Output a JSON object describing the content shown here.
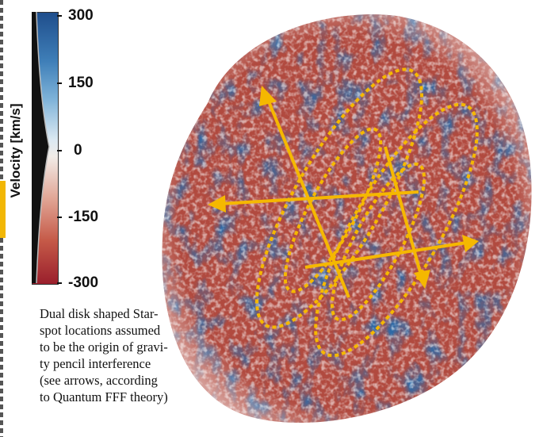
{
  "colorbar": {
    "title": "Velocity [km/s]",
    "ticks": [
      "300",
      "150",
      "0",
      "-150",
      "-300"
    ]
  },
  "caption": {
    "lines": [
      "Dual disk shaped Star-",
      "spot locations assumed",
      "to be the origin of gravi-",
      "ty pencil interference",
      "(see arrows, according",
      "to Quantum FFF theory)"
    ]
  },
  "colors": {
    "annotation": "#f5b800",
    "velocity_positive": "#1f4e8c",
    "velocity_negative": "#9a1f2c",
    "velocity_zero": "#f1ece8"
  }
}
